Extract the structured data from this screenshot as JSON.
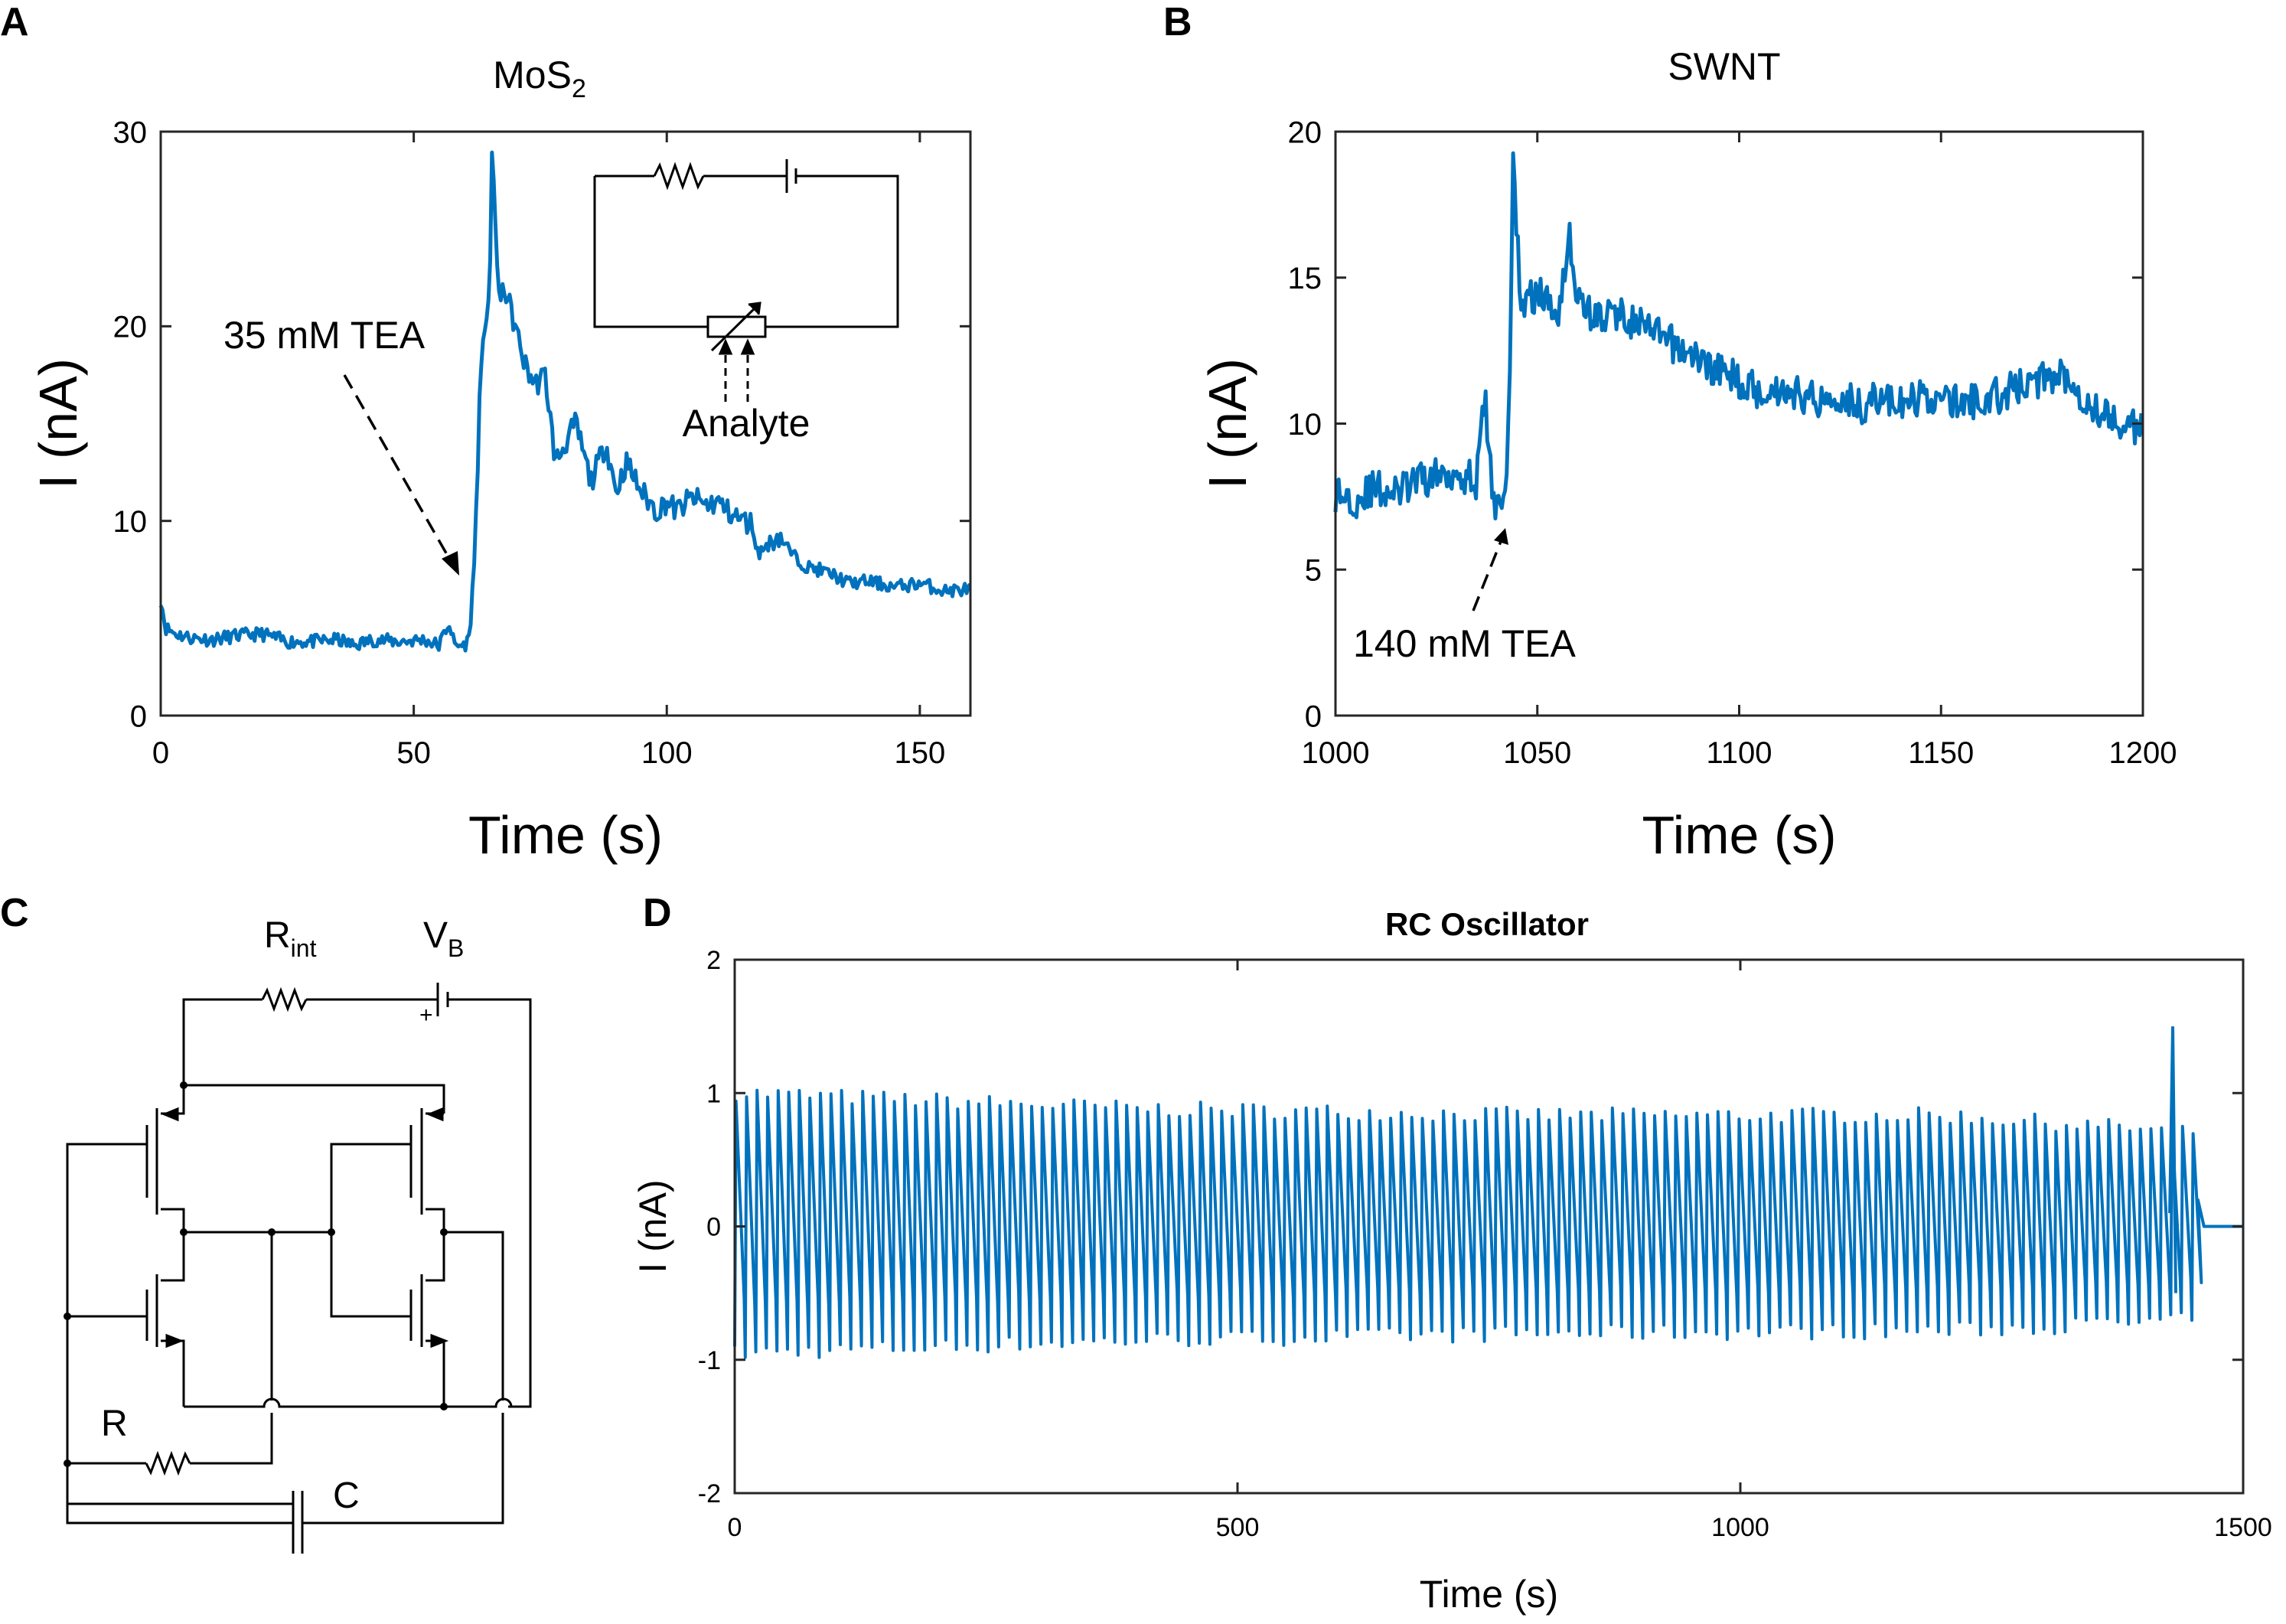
{
  "panels": {
    "a": {
      "letter": "A",
      "title": "MoS",
      "title_sub": "2",
      "annotation": "35 mM TEA",
      "inset_label": "Analyte"
    },
    "b": {
      "letter": "B",
      "title": "SWNT",
      "annotation": "140 mM TEA"
    },
    "c": {
      "letter": "C",
      "labels": {
        "rint": "R",
        "rint_sub": "int",
        "vb": "V",
        "vb_sub": "B",
        "plus": "+",
        "r": "R",
        "c": "C"
      }
    },
    "d": {
      "letter": "D",
      "title": "RC Oscillator"
    }
  },
  "colors": {
    "line": "#0072BD",
    "axis": "#262626"
  },
  "chart_data": [
    {
      "id": "A",
      "type": "line",
      "title": "MoS2",
      "xlabel": "Time (s)",
      "ylabel": "I (nA)",
      "xlim": [
        0,
        160
      ],
      "ylim": [
        0,
        30
      ],
      "xticks": [
        0,
        50,
        100,
        150
      ],
      "yticks": [
        0,
        10,
        20,
        30
      ],
      "grid": false,
      "annotation": {
        "text": "35 mM TEA",
        "x": 60,
        "y": 7
      },
      "series": [
        {
          "x": [
            0,
            1,
            3,
            6,
            10,
            15,
            20,
            25,
            30,
            35,
            38,
            42,
            47,
            52,
            55,
            57,
            58,
            60,
            61,
            62,
            63,
            64,
            65,
            65.5,
            66,
            67,
            68,
            69,
            70,
            72,
            74,
            76,
            78,
            80,
            82,
            85,
            88,
            90,
            92,
            95,
            98,
            100,
            102,
            105,
            108,
            110,
            112,
            115,
            117,
            118,
            120,
            122,
            125,
            128,
            130,
            133,
            136,
            140,
            145,
            150,
            155,
            160
          ],
          "y": [
            6,
            4.5,
            4.2,
            4,
            3.9,
            4.1,
            4.2,
            3.8,
            3.8,
            3.9,
            3.6,
            3.9,
            3.8,
            3.9,
            3.6,
            4.8,
            3.6,
            3.6,
            4,
            8,
            16,
            20,
            22,
            29,
            26,
            21,
            22,
            21,
            20,
            18,
            17,
            17.5,
            13,
            14,
            15,
            12,
            14,
            11.5,
            13,
            11.5,
            10.5,
            11,
            10.5,
            11.2,
            10.8,
            11,
            10.5,
            10,
            9.8,
            8.3,
            8.8,
            9.3,
            8.2,
            7.6,
            7.5,
            7.2,
            6.8,
            6.9,
            6.6,
            6.8,
            6.4,
            6.5
          ]
        }
      ]
    },
    {
      "id": "B",
      "type": "line",
      "title": "SWNT",
      "xlabel": "Time (s)",
      "ylabel": "I (nA)",
      "xlim": [
        1000,
        1200
      ],
      "ylim": [
        0,
        20
      ],
      "xticks": [
        1000,
        1050,
        1100,
        1150,
        1200
      ],
      "yticks": [
        0,
        5,
        10,
        15,
        20
      ],
      "grid": false,
      "annotation": {
        "text": "140 mM TEA",
        "x": 1043,
        "y": 6.5
      },
      "series": [
        {
          "x": [
            1000,
            1005,
            1010,
            1015,
            1020,
            1025,
            1030,
            1035,
            1037,
            1039,
            1040,
            1042,
            1043,
            1044,
            1046,
            1050,
            1055,
            1058,
            1060,
            1065,
            1070,
            1075,
            1080,
            1085,
            1090,
            1095,
            1100,
            1105,
            1110,
            1115,
            1120,
            1125,
            1130,
            1135,
            1140,
            1145,
            1150,
            1155,
            1160,
            1165,
            1170,
            1175,
            1180,
            1185,
            1190,
            1195,
            1200
          ],
          "y": [
            7.6,
            7.4,
            7.8,
            7.6,
            8,
            8.2,
            8.4,
            8,
            11,
            7.2,
            7.4,
            7.6,
            10,
            19,
            14,
            14.5,
            13.8,
            16.4,
            14.2,
            13.6,
            13.8,
            13.4,
            13,
            12.6,
            12.2,
            11.8,
            11.5,
            11.1,
            11.2,
            11,
            10.8,
            11,
            10.6,
            10.9,
            10.6,
            10.9,
            10.8,
            10.7,
            10.8,
            11,
            11.3,
            11.5,
            11.8,
            11,
            10.3,
            10,
            9.8
          ]
        }
      ]
    },
    {
      "id": "D",
      "type": "line",
      "title": "RC Oscillator",
      "xlabel": "Time (s)",
      "ylabel": "I (nA)",
      "xlim": [
        0,
        1500
      ],
      "ylim": [
        -2,
        2
      ],
      "xticks": [
        0,
        500,
        1000,
        1500
      ],
      "yticks": [
        -2,
        -1,
        0,
        1,
        2
      ],
      "grid": false,
      "oscillation": {
        "t_start": 0,
        "t_end": 1455,
        "period_s": 10.5,
        "upper_envelope": [
          [
            0,
            1.0
          ],
          [
            400,
            0.88
          ],
          [
            800,
            0.83
          ],
          [
            1200,
            0.83
          ],
          [
            1455,
            0.7
          ]
        ],
        "lower_envelope": [
          [
            0,
            -0.95
          ],
          [
            400,
            -0.85
          ],
          [
            800,
            -0.8
          ],
          [
            1200,
            -0.78
          ],
          [
            1455,
            -0.7
          ]
        ],
        "spike": {
          "x": 1430,
          "y": 1.5
        },
        "steady_value": 0.0
      }
    }
  ]
}
